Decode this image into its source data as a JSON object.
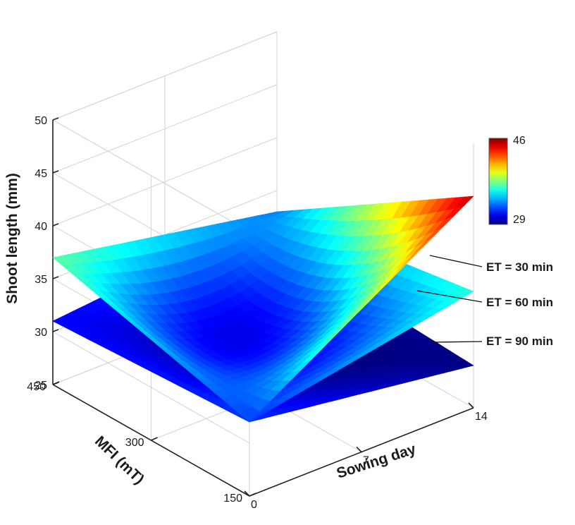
{
  "chart_data": {
    "type": "surface",
    "zlabel": "Shoot length (mm)",
    "xlabel": "Sowing day",
    "ylabel": "MFI (mT)",
    "z_ticks": [
      25,
      30,
      35,
      40,
      45,
      50
    ],
    "x_ticks": [
      0,
      7,
      14
    ],
    "y_ticks": [
      150,
      300,
      450
    ],
    "xlim": [
      0,
      14
    ],
    "ylim": [
      150,
      450
    ],
    "zlim": [
      25,
      50
    ],
    "colorbar": {
      "min": 29,
      "max": 46,
      "min_label": "29",
      "max_label": "46",
      "colormap": "jet"
    },
    "series": [
      {
        "name": "ET = 30 min",
        "corners": {
          "day0_mfi150": 32,
          "day0_mfi450": 37,
          "day14_mfi150": 45,
          "day14_mfi450": 33
        },
        "center": 31
      },
      {
        "name": "ET = 60 min",
        "corners": {
          "day0_mfi150": 32,
          "day0_mfi450": 31,
          "day14_mfi150": 36,
          "day14_mfi450": 33
        },
        "center": 30
      },
      {
        "name": "ET = 90 min",
        "corners": {
          "day0_mfi150": 32,
          "day0_mfi450": 31,
          "day14_mfi150": 29,
          "day14_mfi450": 30
        },
        "center": 29
      }
    ]
  }
}
